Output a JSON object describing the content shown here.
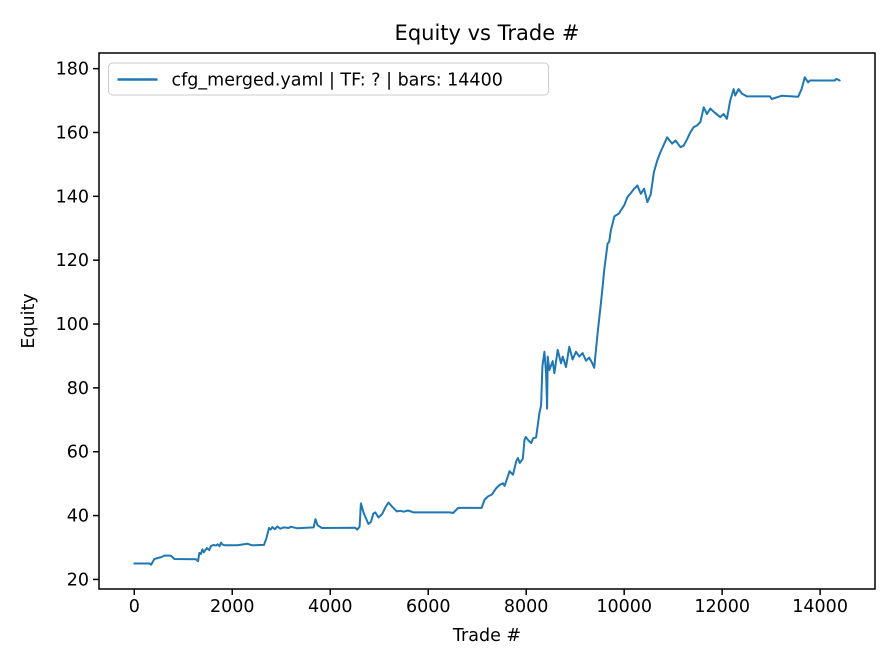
{
  "chart_data": {
    "type": "line",
    "title": "Equity vs Trade #",
    "xlabel": "Trade #",
    "ylabel": "Equity",
    "grid": false,
    "background_color": "#ffffff",
    "spine_color": "#000000",
    "xlim": [
      -720,
      15120
    ],
    "ylim": [
      17,
      184.9
    ],
    "xticks": [
      0,
      2000,
      4000,
      6000,
      8000,
      10000,
      12000,
      14000
    ],
    "yticks": [
      20,
      40,
      60,
      80,
      100,
      120,
      140,
      160,
      180
    ],
    "legend": {
      "position": "upper left",
      "border_color": "#cccccc",
      "background_color": "#ffffff",
      "entries": [
        {
          "label": "cfg_merged.yaml | TF: ? | bars: 14400",
          "color": "#1f77b4"
        }
      ]
    },
    "series": [
      {
        "name": "cfg_merged.yaml | TF: ? | bars: 14400",
        "color": "#1f77b4",
        "points": [
          [
            0,
            25
          ],
          [
            310,
            25
          ],
          [
            345,
            24.6
          ],
          [
            380,
            25.6
          ],
          [
            410,
            26.4
          ],
          [
            550,
            27.0
          ],
          [
            620,
            27.5
          ],
          [
            750,
            27.4
          ],
          [
            819,
            26.4
          ],
          [
            1260,
            26.3
          ],
          [
            1300,
            25.7
          ],
          [
            1330,
            28.3
          ],
          [
            1360,
            28.0
          ],
          [
            1390,
            29.4
          ],
          [
            1420,
            28.5
          ],
          [
            1480,
            29.8
          ],
          [
            1530,
            29.2
          ],
          [
            1565,
            30.4
          ],
          [
            1620,
            30.8
          ],
          [
            1666,
            30.6
          ],
          [
            1700,
            31.0
          ],
          [
            1740,
            30.4
          ],
          [
            1770,
            31.5
          ],
          [
            1800,
            30.9
          ],
          [
            1850,
            30.7
          ],
          [
            1937,
            30.7
          ],
          [
            2100,
            30.7
          ],
          [
            2310,
            31.2
          ],
          [
            2400,
            30.7
          ],
          [
            2648,
            30.8
          ],
          [
            2700,
            33.0
          ],
          [
            2750,
            36.1
          ],
          [
            2783,
            35.6
          ],
          [
            2820,
            36.4
          ],
          [
            2870,
            35.7
          ],
          [
            2920,
            36.6
          ],
          [
            2980,
            35.9
          ],
          [
            3050,
            36.3
          ],
          [
            3157,
            36.1
          ],
          [
            3190,
            36.5
          ],
          [
            3330,
            36.0
          ],
          [
            3660,
            36.3
          ],
          [
            3700,
            38.9
          ],
          [
            3740,
            37.0
          ],
          [
            3830,
            36.1
          ],
          [
            4510,
            36.2
          ],
          [
            4550,
            35.6
          ],
          [
            4600,
            36.5
          ],
          [
            4626,
            43.8
          ],
          [
            4680,
            41.0
          ],
          [
            4715,
            39.6
          ],
          [
            4780,
            37.4
          ],
          [
            4830,
            38.0
          ],
          [
            4880,
            40.6
          ],
          [
            4920,
            41.0
          ],
          [
            4985,
            39.4
          ],
          [
            5060,
            40.5
          ],
          [
            5120,
            42.4
          ],
          [
            5190,
            44.1
          ],
          [
            5250,
            43.0
          ],
          [
            5290,
            42.4
          ],
          [
            5360,
            41.3
          ],
          [
            5430,
            41.5
          ],
          [
            5500,
            41.2
          ],
          [
            5590,
            41.6
          ],
          [
            5700,
            41.0
          ],
          [
            6440,
            41.0
          ],
          [
            6510,
            40.8
          ],
          [
            6610,
            42.4
          ],
          [
            7090,
            42.4
          ],
          [
            7150,
            45.0
          ],
          [
            7220,
            46.0
          ],
          [
            7300,
            46.6
          ],
          [
            7390,
            48.6
          ],
          [
            7460,
            49.6
          ],
          [
            7525,
            50.1
          ],
          [
            7560,
            49.3
          ],
          [
            7627,
            52.3
          ],
          [
            7660,
            53.9
          ],
          [
            7730,
            52.8
          ],
          [
            7797,
            57.0
          ],
          [
            7830,
            58.0
          ],
          [
            7870,
            56.5
          ],
          [
            7930,
            57.8
          ],
          [
            7966,
            63.7
          ],
          [
            7990,
            64.6
          ],
          [
            8050,
            63.5
          ],
          [
            8102,
            62.7
          ],
          [
            8140,
            64.2
          ],
          [
            8203,
            64.5
          ],
          [
            8270,
            72.1
          ],
          [
            8305,
            74.5
          ],
          [
            8330,
            86.7
          ],
          [
            8372,
            91.3
          ],
          [
            8406,
            84.6
          ],
          [
            8427,
            73.5
          ],
          [
            8440,
            89.8
          ],
          [
            8474,
            85.6
          ],
          [
            8542,
            88.4
          ],
          [
            8575,
            84.6
          ],
          [
            8643,
            91.9
          ],
          [
            8711,
            87.7
          ],
          [
            8745,
            89.8
          ],
          [
            8813,
            86.5
          ],
          [
            8880,
            92.9
          ],
          [
            8948,
            88.9
          ],
          [
            9016,
            91.3
          ],
          [
            9084,
            89.8
          ],
          [
            9152,
            90.9
          ],
          [
            9220,
            88.5
          ],
          [
            9287,
            89.5
          ],
          [
            9355,
            87.5
          ],
          [
            9389,
            86.3
          ],
          [
            9457,
            97.1
          ],
          [
            9525,
            106.5
          ],
          [
            9559,
            111.7
          ],
          [
            9593,
            116.9
          ],
          [
            9627,
            121.0
          ],
          [
            9661,
            125.2
          ],
          [
            9695,
            125.8
          ],
          [
            9729,
            129.4
          ],
          [
            9763,
            131.5
          ],
          [
            9800,
            133.7
          ],
          [
            9898,
            134.7
          ],
          [
            9932,
            135.6
          ],
          [
            10000,
            137.2
          ],
          [
            10068,
            139.8
          ],
          [
            10136,
            141.0
          ],
          [
            10203,
            142.4
          ],
          [
            10271,
            143.4
          ],
          [
            10339,
            140.8
          ],
          [
            10407,
            142.4
          ],
          [
            10475,
            138.2
          ],
          [
            10542,
            140.6
          ],
          [
            10607,
            147.6
          ],
          [
            10675,
            151.2
          ],
          [
            10742,
            153.9
          ],
          [
            10878,
            158.5
          ],
          [
            10979,
            156.5
          ],
          [
            11047,
            157.5
          ],
          [
            11149,
            155.4
          ],
          [
            11216,
            155.9
          ],
          [
            11284,
            157.9
          ],
          [
            11352,
            160.1
          ],
          [
            11420,
            161.7
          ],
          [
            11487,
            162.2
          ],
          [
            11555,
            163.3
          ],
          [
            11623,
            167.9
          ],
          [
            11691,
            165.8
          ],
          [
            11759,
            167.5
          ],
          [
            11826,
            166.5
          ],
          [
            11962,
            164.8
          ],
          [
            12030,
            165.8
          ],
          [
            12097,
            164.3
          ],
          [
            12165,
            170.0
          ],
          [
            12233,
            173.6
          ],
          [
            12267,
            171.6
          ],
          [
            12335,
            173.6
          ],
          [
            12402,
            172.2
          ],
          [
            12503,
            171.3
          ],
          [
            12977,
            171.3
          ],
          [
            13011,
            170.5
          ],
          [
            13214,
            171.5
          ],
          [
            13553,
            171.2
          ],
          [
            13621,
            173.6
          ],
          [
            13688,
            177.3
          ],
          [
            13756,
            175.7
          ],
          [
            13790,
            176.3
          ],
          [
            14298,
            176.3
          ],
          [
            14332,
            176.8
          ],
          [
            14400,
            176.3
          ]
        ]
      }
    ]
  }
}
